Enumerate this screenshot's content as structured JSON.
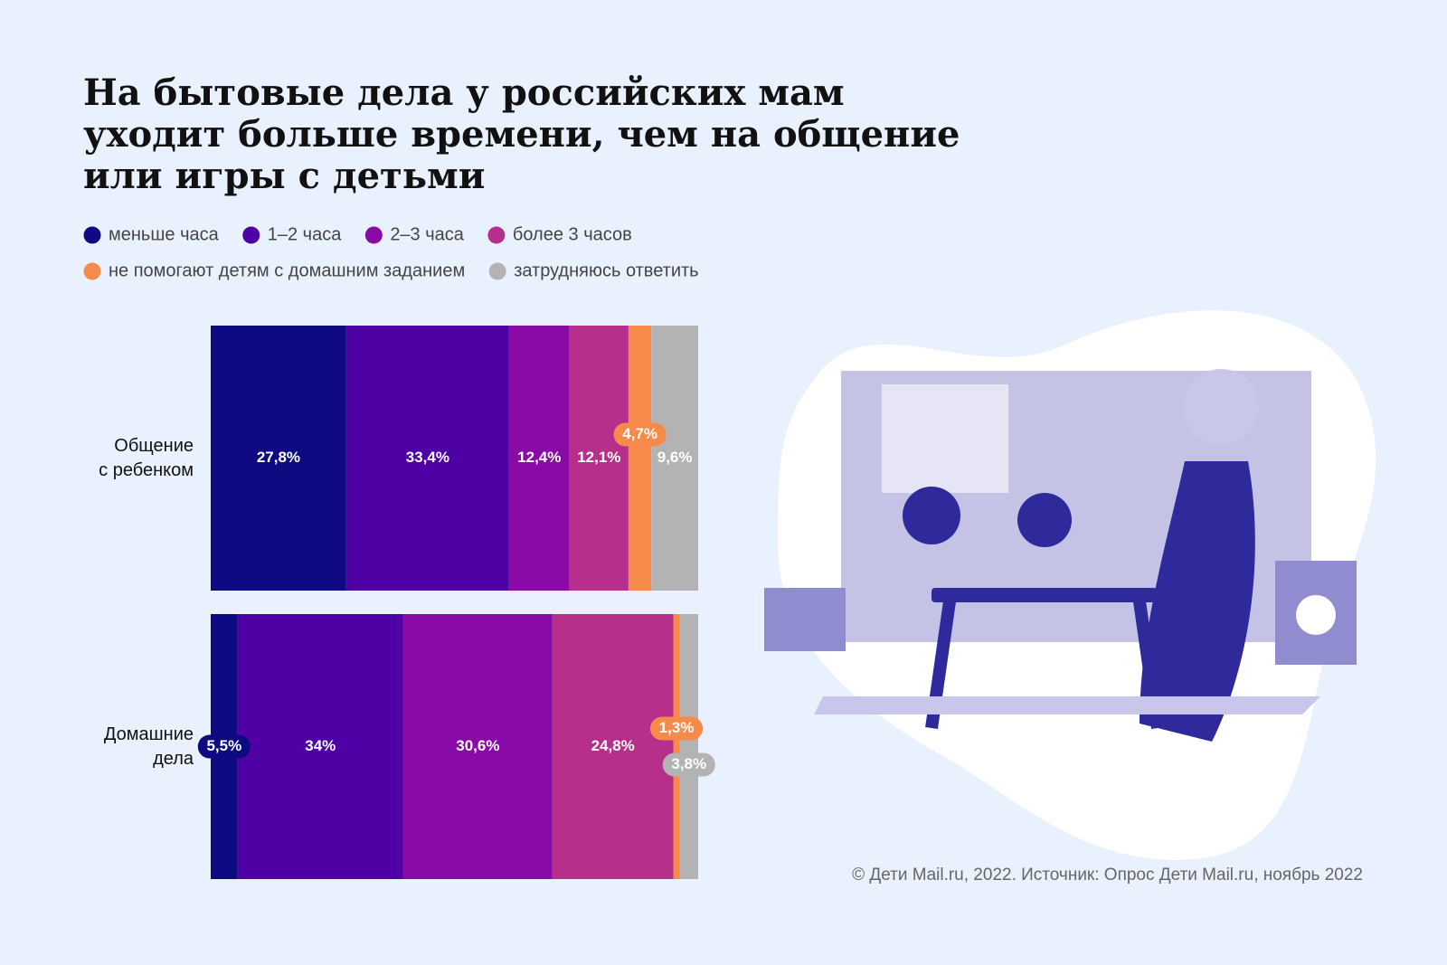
{
  "chart_data": {
    "type": "stacked_bar_100",
    "title": [
      "На бытовые дела у российских мам",
      "уходит больше времени, чем на общение",
      "или игры с детьми"
    ],
    "categories": [
      [
        "Общение",
        "с ребенком"
      ],
      [
        "Домашние",
        "дела"
      ]
    ],
    "xlim": [
      0,
      100
    ],
    "series": [
      {
        "name": "меньше часа",
        "color": "#0d0a82",
        "values": [
          27.8,
          5.5
        ],
        "value_labels": [
          "27,8%",
          "5,5%"
        ]
      },
      {
        "name": "1–2 часа",
        "color": "#4e02a6",
        "values": [
          33.4,
          34
        ],
        "value_labels": [
          "33,4%",
          "34%"
        ]
      },
      {
        "name": "2–3 часа",
        "color": "#8a0aa8",
        "values": [
          12.4,
          30.6
        ],
        "value_labels": [
          "12,4%",
          "30,6%"
        ]
      },
      {
        "name": "более 3 часов",
        "color": "#b62f8a",
        "values": [
          12.1,
          24.8
        ],
        "value_labels": [
          "12,1%",
          "24,8%"
        ]
      },
      {
        "name": "не помогают детям с домашним заданием",
        "color": "#f58a4b",
        "values": [
          4.7,
          1.3
        ],
        "value_labels": [
          "4,7%",
          "1,3%"
        ]
      },
      {
        "name": "затрудняюсь ответить",
        "color": "#b3b3b3",
        "values": [
          9.6,
          3.8
        ],
        "value_labels": [
          "9,6%",
          "3,8%"
        ]
      }
    ],
    "source": "© Дети Mail.ru, 2022. Источник: Опрос Дети Mail.ru, ноябрь 2022"
  }
}
